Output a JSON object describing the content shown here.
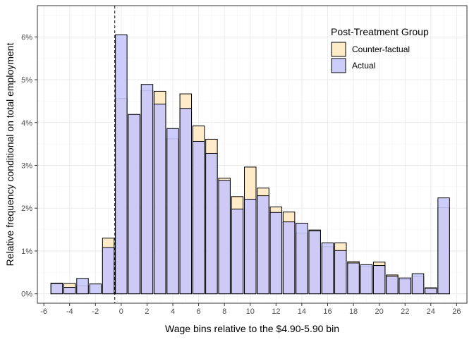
{
  "chart_data": {
    "type": "bar",
    "title": "",
    "xlabel": "Wage bins relative to the $4.90-5.90 bin",
    "ylabel": "Relative frequency conditional on total employment",
    "xlim": [
      -6.5,
      26.8
    ],
    "ylim": [
      -0.0022,
      0.0673
    ],
    "x_ticks": [
      -6,
      -4,
      -2,
      0,
      2,
      4,
      6,
      8,
      10,
      12,
      14,
      16,
      18,
      20,
      22,
      24,
      26
    ],
    "x_tick_labels": [
      "-6",
      "-4",
      "-2",
      "0",
      "2",
      "4",
      "6",
      "8",
      "10",
      "12",
      "14",
      "16",
      "18",
      "20",
      "22",
      "24",
      "26"
    ],
    "y_ticks": [
      0,
      0.01,
      0.02,
      0.03,
      0.04,
      0.05,
      0.06
    ],
    "y_tick_labels": [
      "0%",
      "1%",
      "2%",
      "3%",
      "4%",
      "5%",
      "6%"
    ],
    "grid": true,
    "vline_x": -0.5,
    "legend_title": "Post-Treatment Group",
    "legend_position": "top-right",
    "x": [
      -5,
      -4,
      -3,
      -2,
      -1,
      0,
      1,
      2,
      3,
      4,
      5,
      6,
      7,
      8,
      9,
      10,
      11,
      12,
      13,
      14,
      15,
      16,
      17,
      18,
      19,
      20,
      21,
      22,
      23,
      24,
      25
    ],
    "series": [
      {
        "name": "Counter-factual",
        "color": "#FFE9C2",
        "values": [
          0.0025,
          0.0024,
          0.0019,
          0.0,
          0.013,
          0.0456,
          0.0418,
          0.0475,
          0.0473,
          0.0362,
          0.0467,
          0.0392,
          0.0361,
          0.027,
          0.0227,
          0.0296,
          0.0247,
          0.0203,
          0.0191,
          0.0142,
          0.0149,
          0.011,
          0.0119,
          0.0075,
          0.0064,
          0.0074,
          0.0044,
          0.0033,
          0.004,
          0.0014,
          0.0201
        ]
      },
      {
        "name": "Actual",
        "color": "#C8C8FB",
        "values": [
          0.0024,
          0.0015,
          0.0036,
          0.0023,
          0.0108,
          0.0605,
          0.0419,
          0.0489,
          0.0443,
          0.0386,
          0.0433,
          0.0356,
          0.0328,
          0.0265,
          0.0198,
          0.0221,
          0.0229,
          0.019,
          0.0168,
          0.0165,
          0.0147,
          0.0119,
          0.0101,
          0.0072,
          0.0068,
          0.0066,
          0.0041,
          0.0037,
          0.0047,
          0.0013,
          0.0224
        ]
      }
    ]
  }
}
